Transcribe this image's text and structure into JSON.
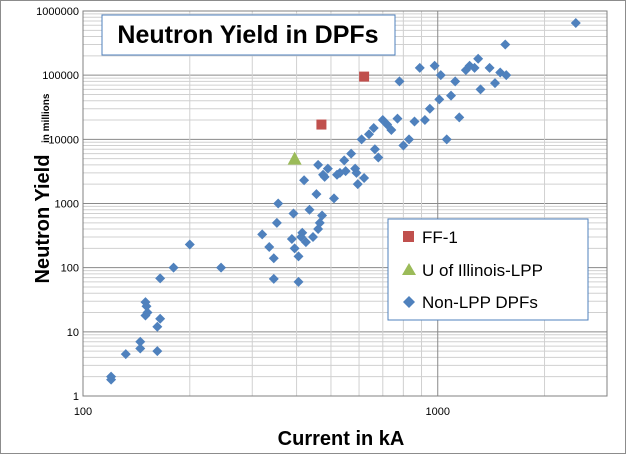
{
  "chart_data": {
    "type": "scatter",
    "title": "Neutron Yield in DPFs",
    "xlabel": "Current in kA",
    "ylabel": "Neutron Yield",
    "ylabel_suffix": "in millions",
    "x_scale": "log",
    "y_scale": "log",
    "xlim": [
      100,
      3000
    ],
    "ylim": [
      1,
      1000000
    ],
    "x_ticks": [
      100,
      1000
    ],
    "x_tick_labels": [
      "100",
      "1000"
    ],
    "y_ticks": [
      1,
      10,
      100,
      1000,
      10000,
      100000,
      1000000
    ],
    "y_tick_labels": [
      "1",
      "10",
      "100",
      "1000",
      "10000",
      "100000",
      "1000000"
    ],
    "grid": true,
    "legend_position": "bottom-right",
    "series": [
      {
        "name": "FF-1",
        "marker": "square",
        "color": "#c0504d",
        "points": [
          [
            470,
            17000
          ],
          [
            620,
            95000
          ]
        ]
      },
      {
        "name": "U of Illinois-LPP",
        "marker": "triangle",
        "color": "#9bbb59",
        "points": [
          [
            395,
            5000
          ]
        ]
      },
      {
        "name": "Non-LPP DPFs",
        "marker": "diamond",
        "color": "#4f81bd",
        "points": [
          [
            120,
            2
          ],
          [
            120,
            1.8
          ],
          [
            132,
            4.5
          ],
          [
            145,
            5.5
          ],
          [
            145,
            7
          ],
          [
            150,
            29
          ],
          [
            151,
            25
          ],
          [
            150,
            18
          ],
          [
            152,
            20
          ],
          [
            162,
            5
          ],
          [
            162,
            12
          ],
          [
            165,
            16
          ],
          [
            165,
            68
          ],
          [
            180,
            100
          ],
          [
            200,
            230
          ],
          [
            245,
            100
          ],
          [
            320,
            330
          ],
          [
            335,
            210
          ],
          [
            345,
            140
          ],
          [
            345,
            67
          ],
          [
            352,
            500
          ],
          [
            355,
            1000
          ],
          [
            388,
            280
          ],
          [
            392,
            700
          ],
          [
            395,
            200
          ],
          [
            405,
            60
          ],
          [
            405,
            150
          ],
          [
            412,
            300
          ],
          [
            415,
            350
          ],
          [
            420,
            2300
          ],
          [
            425,
            250
          ],
          [
            435,
            800
          ],
          [
            445,
            300
          ],
          [
            455,
            1400
          ],
          [
            460,
            400
          ],
          [
            460,
            4000
          ],
          [
            465,
            500
          ],
          [
            472,
            650
          ],
          [
            475,
            2800
          ],
          [
            480,
            2600
          ],
          [
            490,
            3500
          ],
          [
            510,
            1200
          ],
          [
            520,
            2800
          ],
          [
            530,
            3000
          ],
          [
            545,
            4700
          ],
          [
            550,
            3200
          ],
          [
            570,
            6000
          ],
          [
            585,
            3500
          ],
          [
            590,
            3000
          ],
          [
            595,
            2000
          ],
          [
            610,
            10000
          ],
          [
            620,
            2500
          ],
          [
            640,
            12000
          ],
          [
            660,
            15000
          ],
          [
            665,
            7000
          ],
          [
            680,
            5200
          ],
          [
            700,
            20000
          ],
          [
            720,
            17000
          ],
          [
            740,
            14000
          ],
          [
            770,
            21000
          ],
          [
            780,
            80000
          ],
          [
            800,
            8000
          ],
          [
            830,
            10000
          ],
          [
            860,
            19000
          ],
          [
            890,
            130000
          ],
          [
            920,
            20000
          ],
          [
            950,
            30000
          ],
          [
            980,
            140000
          ],
          [
            1010,
            42000
          ],
          [
            1020,
            100000
          ],
          [
            1060,
            10000
          ],
          [
            1090,
            48000
          ],
          [
            1120,
            80000
          ],
          [
            1150,
            22000
          ],
          [
            1200,
            120000
          ],
          [
            1230,
            140000
          ],
          [
            1270,
            130000
          ],
          [
            1300,
            180000
          ],
          [
            1320,
            60000
          ],
          [
            1400,
            130000
          ],
          [
            1450,
            75000
          ],
          [
            1500,
            110000
          ],
          [
            1550,
            300000
          ],
          [
            1560,
            100000
          ],
          [
            2450,
            650000
          ]
        ]
      }
    ]
  }
}
